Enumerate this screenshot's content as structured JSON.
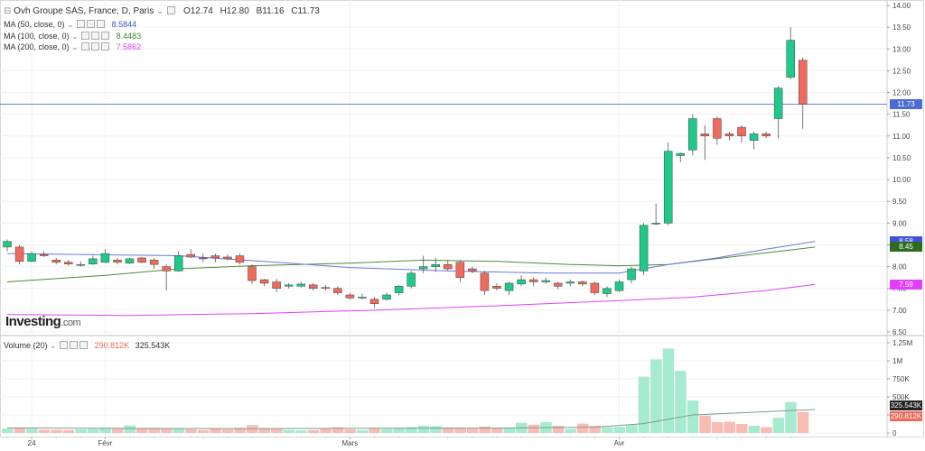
{
  "header": {
    "title": "Ovh Groupe SAS, France, D, Paris",
    "open": "O12.74",
    "high": "H12.80",
    "low": "B11.16",
    "close": "C11.73"
  },
  "indicators": [
    {
      "label": "MA (50, close, 0)",
      "value": "8.5844",
      "color": "#3f51d8"
    },
    {
      "label": "MA (100, close, 0)",
      "value": "8.4483",
      "color": "#3c8a2e"
    },
    {
      "label": "MA (200, close, 0)",
      "value": "7.5862",
      "color": "#e040fb"
    }
  ],
  "volume_legend": {
    "label": "Volume (20)",
    "value1": "290.812K",
    "value2": "325.543K"
  },
  "logo": {
    "brand": "Investing",
    "suffix": ".com"
  },
  "price_labels": [
    {
      "text": "11.73",
      "value": 11.73,
      "color": "#4a6cd4"
    },
    {
      "text": "8.58",
      "value": 8.58,
      "color": "#3f51d8"
    },
    {
      "text": "8.45",
      "value": 8.45,
      "color": "#2e6b22"
    },
    {
      "text": "7.59",
      "value": 7.59,
      "color": "#e040fb"
    }
  ],
  "volume_labels": [
    {
      "text": "325.543K",
      "value": 325.543,
      "color": "#222222"
    },
    {
      "text": "290.812K",
      "value": 290.812,
      "color": "#ef6a5a"
    }
  ],
  "chart_data": {
    "type": "candlestick",
    "title": "Ovh Groupe SAS, France, D, Paris",
    "colors": {
      "up": "#1ec98a",
      "down": "#ef6a5a",
      "vol_up": "#a6ead0",
      "vol_down": "#f8bcb5",
      "grid": "#f0f0f0"
    },
    "price_axis": {
      "min": 6.5,
      "max": 14.0,
      "ticks": [
        "14.00",
        "13.50",
        "13.00",
        "12.50",
        "12.00",
        "11.50",
        "11.00",
        "10.50",
        "10.00",
        "9.50",
        "9.00",
        "8.50",
        "8.00",
        "7.50",
        "7.00",
        "6.50"
      ]
    },
    "volume_axis": {
      "max": 1250,
      "ticks": [
        {
          "label": "1.25M",
          "value": 1250
        },
        {
          "label": "1M",
          "value": 1000
        },
        {
          "label": "750K",
          "value": 750
        },
        {
          "label": "500K",
          "value": 500
        },
        {
          "label": "250K",
          "value": 250
        },
        {
          "label": "0",
          "value": 0
        }
      ]
    },
    "x_labels": [
      {
        "label": "24",
        "index": 2
      },
      {
        "label": "Févr",
        "index": 8
      },
      {
        "label": "Mars",
        "index": 28
      },
      {
        "label": "Avr",
        "index": 50
      }
    ],
    "candles": [
      {
        "o": 8.45,
        "h": 8.62,
        "l": 8.35,
        "c": 8.58,
        "v": 60
      },
      {
        "o": 8.45,
        "h": 8.5,
        "l": 8.05,
        "c": 8.12,
        "v": 65
      },
      {
        "o": 8.12,
        "h": 8.35,
        "l": 8.1,
        "c": 8.3,
        "v": 60
      },
      {
        "o": 8.28,
        "h": 8.35,
        "l": 8.22,
        "c": 8.25,
        "v": 45
      },
      {
        "o": 8.15,
        "h": 8.2,
        "l": 8.05,
        "c": 8.1,
        "v": 45
      },
      {
        "o": 8.1,
        "h": 8.15,
        "l": 8.02,
        "c": 8.06,
        "v": 40
      },
      {
        "o": 8.05,
        "h": 8.12,
        "l": 8.0,
        "c": 8.05,
        "v": 50
      },
      {
        "o": 8.06,
        "h": 8.25,
        "l": 8.04,
        "c": 8.18,
        "v": 55
      },
      {
        "o": 8.1,
        "h": 8.4,
        "l": 8.08,
        "c": 8.3,
        "v": 70
      },
      {
        "o": 8.15,
        "h": 8.2,
        "l": 8.05,
        "c": 8.1,
        "v": 65
      },
      {
        "o": 8.08,
        "h": 8.2,
        "l": 8.06,
        "c": 8.18,
        "v": 105
      },
      {
        "o": 8.2,
        "h": 8.22,
        "l": 8.08,
        "c": 8.1,
        "v": 60
      },
      {
        "o": 8.15,
        "h": 8.2,
        "l": 7.95,
        "c": 8.05,
        "v": 70
      },
      {
        "o": 8.0,
        "h": 8.05,
        "l": 7.45,
        "c": 7.9,
        "v": 60
      },
      {
        "o": 7.9,
        "h": 8.35,
        "l": 7.88,
        "c": 8.25,
        "v": 55
      },
      {
        "o": 8.28,
        "h": 8.4,
        "l": 8.2,
        "c": 8.22,
        "v": 50
      },
      {
        "o": 8.2,
        "h": 8.3,
        "l": 8.1,
        "c": 8.18,
        "v": 40
      },
      {
        "o": 8.25,
        "h": 8.3,
        "l": 8.1,
        "c": 8.2,
        "v": 55
      },
      {
        "o": 8.22,
        "h": 8.28,
        "l": 8.15,
        "c": 8.18,
        "v": 50
      },
      {
        "o": 8.25,
        "h": 8.3,
        "l": 8.05,
        "c": 8.1,
        "v": 70
      },
      {
        "o": 8.0,
        "h": 8.05,
        "l": 7.6,
        "c": 7.68,
        "v": 110
      },
      {
        "o": 7.7,
        "h": 7.72,
        "l": 7.55,
        "c": 7.62,
        "v": 65
      },
      {
        "o": 7.65,
        "h": 7.72,
        "l": 7.42,
        "c": 7.5,
        "v": 60
      },
      {
        "o": 7.55,
        "h": 7.62,
        "l": 7.5,
        "c": 7.58,
        "v": 40
      },
      {
        "o": 7.55,
        "h": 7.65,
        "l": 7.52,
        "c": 7.6,
        "v": 35
      },
      {
        "o": 7.58,
        "h": 7.62,
        "l": 7.45,
        "c": 7.5,
        "v": 40
      },
      {
        "o": 7.52,
        "h": 7.58,
        "l": 7.45,
        "c": 7.5,
        "v": 60
      },
      {
        "o": 7.5,
        "h": 7.55,
        "l": 7.35,
        "c": 7.4,
        "v": 80
      },
      {
        "o": 7.35,
        "h": 7.4,
        "l": 7.24,
        "c": 7.28,
        "v": 50
      },
      {
        "o": 7.3,
        "h": 7.38,
        "l": 7.25,
        "c": 7.3,
        "v": 40
      },
      {
        "o": 7.25,
        "h": 7.3,
        "l": 7.05,
        "c": 7.15,
        "v": 60
      },
      {
        "o": 7.25,
        "h": 7.4,
        "l": 7.22,
        "c": 7.35,
        "v": 55
      },
      {
        "o": 7.4,
        "h": 7.58,
        "l": 7.35,
        "c": 7.55,
        "v": 65
      },
      {
        "o": 7.55,
        "h": 7.9,
        "l": 7.5,
        "c": 7.85,
        "v": 80
      },
      {
        "o": 7.95,
        "h": 8.25,
        "l": 7.85,
        "c": 8.0,
        "v": 100
      },
      {
        "o": 8.0,
        "h": 8.2,
        "l": 7.88,
        "c": 8.05,
        "v": 95
      },
      {
        "o": 8.05,
        "h": 8.15,
        "l": 7.9,
        "c": 7.95,
        "v": 75
      },
      {
        "o": 8.1,
        "h": 8.15,
        "l": 7.65,
        "c": 7.75,
        "v": 70
      },
      {
        "o": 7.95,
        "h": 8.0,
        "l": 7.85,
        "c": 7.9,
        "v": 60
      },
      {
        "o": 7.85,
        "h": 7.9,
        "l": 7.35,
        "c": 7.45,
        "v": 90
      },
      {
        "o": 7.55,
        "h": 7.62,
        "l": 7.45,
        "c": 7.5,
        "v": 70
      },
      {
        "o": 7.45,
        "h": 7.65,
        "l": 7.35,
        "c": 7.62,
        "v": 65
      },
      {
        "o": 7.6,
        "h": 7.8,
        "l": 7.55,
        "c": 7.7,
        "v": 140
      },
      {
        "o": 7.7,
        "h": 7.75,
        "l": 7.55,
        "c": 7.65,
        "v": 115
      },
      {
        "o": 7.65,
        "h": 7.75,
        "l": 7.6,
        "c": 7.68,
        "v": 150
      },
      {
        "o": 7.62,
        "h": 7.65,
        "l": 7.48,
        "c": 7.55,
        "v": 100
      },
      {
        "o": 7.62,
        "h": 7.7,
        "l": 7.55,
        "c": 7.65,
        "v": 55
      },
      {
        "o": 7.65,
        "h": 7.68,
        "l": 7.55,
        "c": 7.6,
        "v": 130
      },
      {
        "o": 7.62,
        "h": 7.65,
        "l": 7.35,
        "c": 7.4,
        "v": 100
      },
      {
        "o": 7.38,
        "h": 7.55,
        "l": 7.3,
        "c": 7.5,
        "v": 80
      },
      {
        "o": 7.45,
        "h": 7.7,
        "l": 7.42,
        "c": 7.65,
        "v": 85
      },
      {
        "o": 7.7,
        "h": 8.0,
        "l": 7.62,
        "c": 7.95,
        "v": 110
      },
      {
        "o": 7.9,
        "h": 9.0,
        "l": 7.8,
        "c": 8.95,
        "v": 780
      },
      {
        "o": 9.0,
        "h": 9.45,
        "l": 8.95,
        "c": 9.0,
        "v": 1020
      },
      {
        "o": 9.0,
        "h": 10.85,
        "l": 8.95,
        "c": 10.65,
        "v": 1170
      },
      {
        "o": 10.55,
        "h": 10.62,
        "l": 10.4,
        "c": 10.6,
        "v": 860
      },
      {
        "o": 10.68,
        "h": 11.5,
        "l": 10.55,
        "c": 11.4,
        "v": 450
      },
      {
        "o": 11.05,
        "h": 11.25,
        "l": 10.45,
        "c": 11.0,
        "v": 240
      },
      {
        "o": 11.4,
        "h": 11.45,
        "l": 10.8,
        "c": 10.95,
        "v": 150
      },
      {
        "o": 11.05,
        "h": 11.1,
        "l": 10.9,
        "c": 11.0,
        "v": 155
      },
      {
        "o": 11.2,
        "h": 11.25,
        "l": 10.85,
        "c": 11.0,
        "v": 125
      },
      {
        "o": 10.9,
        "h": 11.1,
        "l": 10.7,
        "c": 11.05,
        "v": 100
      },
      {
        "o": 11.05,
        "h": 11.1,
        "l": 10.95,
        "c": 11.0,
        "v": 80
      },
      {
        "o": 11.4,
        "h": 12.15,
        "l": 10.95,
        "c": 12.1,
        "v": 210
      },
      {
        "o": 12.35,
        "h": 13.5,
        "l": 12.3,
        "c": 13.2,
        "v": 430
      },
      {
        "o": 12.74,
        "h": 12.8,
        "l": 11.16,
        "c": 11.73,
        "v": 290.812
      }
    ],
    "ma50": [
      [
        0,
        8.3
      ],
      [
        14,
        8.25
      ],
      [
        22,
        8.1
      ],
      [
        28,
        7.98
      ],
      [
        36,
        7.9
      ],
      [
        44,
        7.85
      ],
      [
        50,
        7.85
      ],
      [
        54,
        8.05
      ],
      [
        58,
        8.2
      ],
      [
        62,
        8.4
      ],
      [
        66,
        8.58
      ]
    ],
    "ma100": [
      [
        0,
        7.65
      ],
      [
        8,
        7.8
      ],
      [
        14,
        7.95
      ],
      [
        20,
        8.02
      ],
      [
        28,
        8.08
      ],
      [
        34,
        8.15
      ],
      [
        40,
        8.12
      ],
      [
        46,
        8.05
      ],
      [
        50,
        8.02
      ],
      [
        54,
        8.05
      ],
      [
        60,
        8.25
      ],
      [
        66,
        8.45
      ]
    ],
    "ma200": [
      [
        0,
        6.9
      ],
      [
        10,
        6.88
      ],
      [
        20,
        6.92
      ],
      [
        30,
        7.0
      ],
      [
        40,
        7.1
      ],
      [
        50,
        7.22
      ],
      [
        56,
        7.3
      ],
      [
        62,
        7.45
      ],
      [
        66,
        7.59
      ]
    ],
    "vol_ma": [
      [
        0,
        70
      ],
      [
        10,
        62
      ],
      [
        20,
        60
      ],
      [
        30,
        65
      ],
      [
        40,
        68
      ],
      [
        48,
        80
      ],
      [
        52,
        130
      ],
      [
        56,
        250
      ],
      [
        60,
        280
      ],
      [
        66,
        325.543
      ]
    ],
    "last_price": 11.73
  }
}
